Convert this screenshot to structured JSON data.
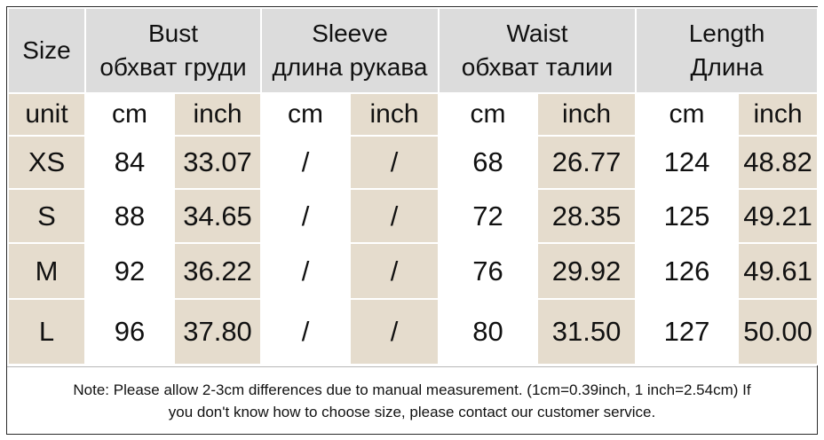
{
  "header": {
    "size": "Size",
    "bust": [
      "Bust",
      "обхват груди"
    ],
    "sleeve": [
      "Sleeve",
      "длина рукава"
    ],
    "waist": [
      "Waist",
      "обхват талии"
    ],
    "length": [
      "Length",
      "Длина"
    ]
  },
  "units": {
    "label": "unit",
    "values": [
      "cm",
      "inch",
      "cm",
      "inch",
      "cm",
      "inch",
      "cm",
      "inch"
    ]
  },
  "rows": [
    {
      "size": "XS",
      "values": [
        "84",
        "33.07",
        "/",
        "/",
        "68",
        "26.77",
        "124",
        "48.82"
      ]
    },
    {
      "size": "S",
      "values": [
        "88",
        "34.65",
        "/",
        "/",
        "72",
        "28.35",
        "125",
        "49.21"
      ]
    },
    {
      "size": "M",
      "values": [
        "92",
        "36.22",
        "/",
        "/",
        "76",
        "29.92",
        "126",
        "49.61"
      ]
    },
    {
      "size": "L",
      "values": [
        "96",
        "37.80",
        "/",
        "/",
        "80",
        "31.50",
        "127",
        "50.00"
      ]
    }
  ],
  "note": {
    "line1": "Note: Please allow 2-3cm differences due to manual measurement. (1cm=0.39inch, 1 inch=2.54cm)  If",
    "line2": "you don't know how to choose size, please contact our customer service."
  },
  "colors": {
    "header_bg": "#dcdcdc",
    "inch_bg": "#e5dccd",
    "cm_bg": "#ffffff"
  }
}
